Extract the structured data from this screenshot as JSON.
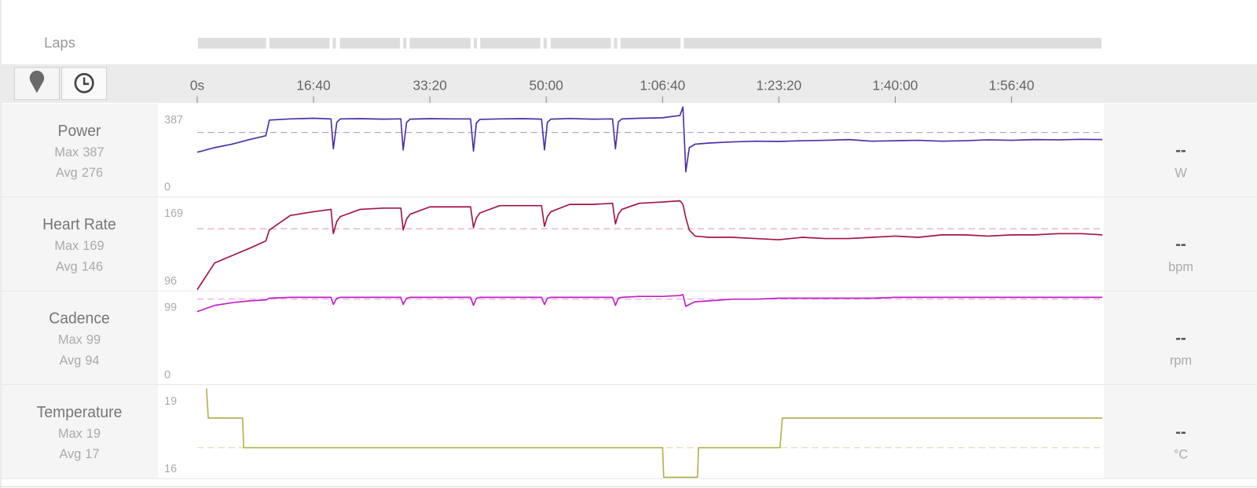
{
  "laps": {
    "label": "Laps"
  },
  "time_axis": {
    "xlim": [
      0,
      7780
    ],
    "xticks": [
      {
        "value": 0,
        "label": "0s"
      },
      {
        "value": 1000,
        "label": "16:40"
      },
      {
        "value": 2000,
        "label": "33:20"
      },
      {
        "value": 3000,
        "label": "50:00"
      },
      {
        "value": 4000,
        "label": "1:06:40"
      },
      {
        "value": 5000,
        "label": "1:23:20"
      },
      {
        "value": 6000,
        "label": "1:40:00"
      },
      {
        "value": 7000,
        "label": "1:56:40"
      }
    ]
  },
  "chart_data": [
    {
      "type": "line",
      "title": "Power",
      "color": "#4b2fa6",
      "max_label": "Max",
      "max": 387,
      "avg_label": "Avg",
      "avg": 276,
      "current": "--",
      "unit": "W",
      "xlim": [
        0,
        7780
      ],
      "ylim": [
        0,
        387
      ],
      "yticks": [
        0,
        387
      ],
      "x": [
        0,
        150,
        300,
        450,
        590,
        620,
        800,
        1000,
        1150,
        1170,
        1200,
        1230,
        1400,
        1600,
        1750,
        1770,
        1800,
        1830,
        2000,
        2200,
        2350,
        2375,
        2400,
        2430,
        2600,
        2800,
        2960,
        2985,
        3010,
        3040,
        3200,
        3400,
        3570,
        3595,
        3620,
        3650,
        3800,
        4000,
        4150,
        4175,
        4200,
        4230,
        4280,
        4400,
        4600,
        4800,
        5000,
        5200,
        5400,
        5600,
        5800,
        6000,
        6200,
        6400,
        6600,
        6800,
        7000,
        7200,
        7400,
        7600,
        7780
      ],
      "values": [
        190,
        210,
        225,
        245,
        262,
        330,
        335,
        338,
        335,
        205,
        320,
        335,
        336,
        334,
        335,
        200,
        320,
        334,
        336,
        335,
        335,
        195,
        318,
        333,
        335,
        336,
        334,
        200,
        320,
        334,
        337,
        334,
        335,
        205,
        322,
        335,
        338,
        340,
        350,
        387,
        105,
        210,
        225,
        230,
        235,
        238,
        237,
        240,
        242,
        245,
        238,
        240,
        242,
        238,
        240,
        244,
        242,
        245,
        244,
        246,
        245
      ]
    },
    {
      "type": "line",
      "title": "Heart Rate",
      "color": "#a3124a",
      "max_label": "Max",
      "max": 169,
      "avg_label": "Avg",
      "avg": 146,
      "current": "--",
      "unit": "bpm",
      "xlim": [
        0,
        7780
      ],
      "ylim": [
        96,
        169
      ],
      "yticks": [
        96,
        169
      ],
      "x": [
        0,
        150,
        300,
        450,
        590,
        620,
        800,
        1000,
        1150,
        1170,
        1200,
        1230,
        1400,
        1600,
        1750,
        1770,
        1800,
        1830,
        2000,
        2200,
        2350,
        2375,
        2400,
        2430,
        2600,
        2800,
        2960,
        2985,
        3010,
        3040,
        3200,
        3400,
        3570,
        3595,
        3620,
        3650,
        3800,
        4000,
        4150,
        4175,
        4200,
        4230,
        4280,
        4400,
        4600,
        4800,
        5000,
        5200,
        5400,
        5600,
        5800,
        6000,
        6200,
        6400,
        6600,
        6800,
        7000,
        7200,
        7400,
        7600,
        7780
      ],
      "values": [
        96,
        118,
        124,
        130,
        136,
        145,
        157,
        160,
        162,
        142,
        152,
        156,
        162,
        163,
        163,
        145,
        154,
        158,
        164,
        164,
        164,
        147,
        155,
        159,
        165,
        165,
        165,
        148,
        156,
        160,
        166,
        166,
        167,
        150,
        158,
        162,
        167,
        168,
        169,
        166,
        155,
        145,
        140,
        139,
        139,
        138,
        137,
        139,
        138,
        138,
        139,
        140,
        139,
        141,
        141,
        140,
        141,
        141,
        142,
        142,
        141
      ]
    },
    {
      "type": "line",
      "title": "Cadence",
      "color": "#c21fc7",
      "max_label": "Max",
      "max": 99,
      "avg_label": "Avg",
      "avg": 94,
      "current": "--",
      "unit": "rpm",
      "xlim": [
        0,
        7780
      ],
      "ylim": [
        0,
        99
      ],
      "yticks": [
        0,
        99
      ],
      "x": [
        0,
        150,
        300,
        450,
        590,
        620,
        800,
        1000,
        1150,
        1170,
        1200,
        1230,
        1400,
        1600,
        1750,
        1770,
        1800,
        1830,
        2000,
        2200,
        2350,
        2375,
        2400,
        2430,
        2600,
        2800,
        2960,
        2985,
        3010,
        3040,
        3200,
        3400,
        3570,
        3595,
        3620,
        3650,
        3800,
        4000,
        4150,
        4175,
        4200,
        4230,
        4280,
        4400,
        4600,
        4800,
        5000,
        5200,
        5400,
        5600,
        5800,
        6000,
        6200,
        6400,
        6600,
        6800,
        7000,
        7200,
        7400,
        7600,
        7780
      ],
      "values": [
        80,
        87,
        90,
        92,
        93,
        95,
        96,
        96,
        96,
        88,
        95,
        96,
        96,
        96,
        96,
        88,
        95,
        96,
        96,
        96,
        96,
        87,
        95,
        96,
        96,
        96,
        96,
        88,
        95,
        96,
        96,
        96,
        96,
        87,
        95,
        96,
        97,
        97,
        98,
        99,
        86,
        88,
        91,
        92,
        94,
        94,
        95,
        95,
        95,
        95,
        95,
        96,
        96,
        96,
        96,
        96,
        96,
        96,
        96,
        96,
        96
      ]
    },
    {
      "type": "line",
      "title": "Temperature",
      "color": "#b5b04f",
      "max_label": "Max",
      "max": 19,
      "avg_label": "Avg",
      "avg": 17,
      "current": "--",
      "unit": "°C",
      "xlim": [
        0,
        7780
      ],
      "ylim": [
        16,
        19
      ],
      "yticks": [
        16,
        19
      ],
      "x": [
        80,
        95,
        390,
        400,
        4000,
        4010,
        4300,
        4310,
        5010,
        5030,
        7780
      ],
      "values": [
        19,
        18,
        18,
        17,
        17,
        16,
        16,
        17,
        17,
        18,
        18
      ]
    }
  ]
}
